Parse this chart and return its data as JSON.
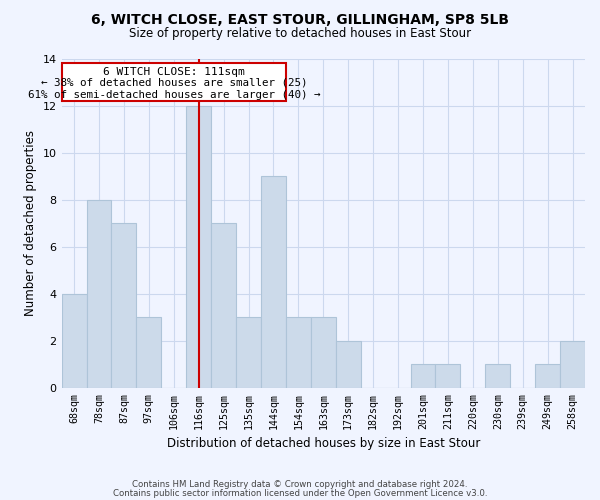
{
  "title": "6, WITCH CLOSE, EAST STOUR, GILLINGHAM, SP8 5LB",
  "subtitle": "Size of property relative to detached houses in East Stour",
  "xlabel": "Distribution of detached houses by size in East Stour",
  "ylabel": "Number of detached properties",
  "footer_line1": "Contains HM Land Registry data © Crown copyright and database right 2024.",
  "footer_line2": "Contains public sector information licensed under the Open Government Licence v3.0.",
  "bar_labels": [
    "68sqm",
    "78sqm",
    "87sqm",
    "97sqm",
    "106sqm",
    "116sqm",
    "125sqm",
    "135sqm",
    "144sqm",
    "154sqm",
    "163sqm",
    "173sqm",
    "182sqm",
    "192sqm",
    "201sqm",
    "211sqm",
    "220sqm",
    "230sqm",
    "239sqm",
    "249sqm",
    "258sqm"
  ],
  "bar_values": [
    4,
    8,
    7,
    3,
    0,
    12,
    7,
    3,
    9,
    3,
    3,
    2,
    0,
    0,
    1,
    1,
    0,
    1,
    0,
    1,
    2
  ],
  "bar_color": "#ccdaea",
  "bar_edge_color": "#aec4d8",
  "vline_x": 5,
  "vline_color": "#cc0000",
  "annotation_title": "6 WITCH CLOSE: 111sqm",
  "annotation_line1": "← 38% of detached houses are smaller (25)",
  "annotation_line2": "61% of semi-detached houses are larger (40) →",
  "annotation_box_color": "#ffffff",
  "annotation_box_edge": "#cc0000",
  "ylim": [
    0,
    14
  ],
  "yticks": [
    0,
    2,
    4,
    6,
    8,
    10,
    12,
    14
  ],
  "background_color": "#f0f4ff",
  "grid_color": "#ccd8ee"
}
